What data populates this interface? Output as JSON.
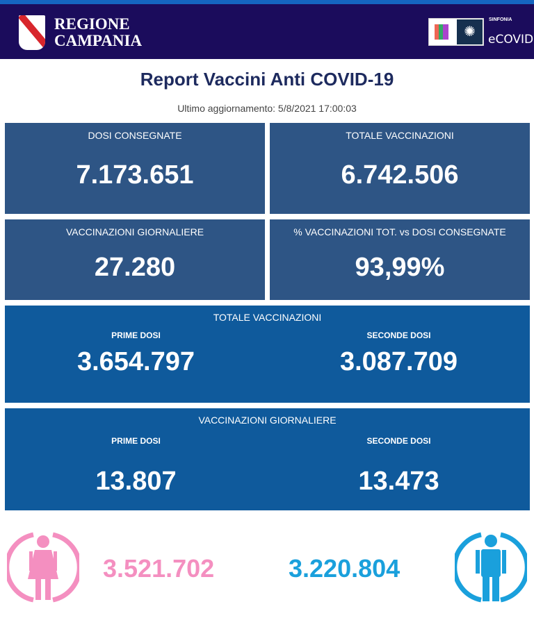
{
  "header": {
    "region_name_line1": "REGIONE",
    "region_name_line2": "CAMPANIA",
    "logo_small": "SINFONIA",
    "logo_text": "eCOVID"
  },
  "title": "Report Vaccini Anti COVID-19",
  "last_update": "Ultimo aggiornamento: 5/8/2021  17:00:03",
  "cards": [
    {
      "label": "DOSI  CONSEGNATE",
      "value": "7.173.651"
    },
    {
      "label": "TOTALE VACCINAZIONI",
      "value": "6.742.506"
    },
    {
      "label": "VACCINAZIONI GIORNALIERE",
      "value": "27.280"
    },
    {
      "label": "% VACCINAZIONI TOT. vs DOSI CONSEGNATE",
      "value": "93,99%"
    }
  ],
  "totale": {
    "title": "TOTALE VACCINAZIONI",
    "prime_label": "PRIME DOSI",
    "prime": "3.654.797",
    "seconde_label": "SECONDE DOSI",
    "seconde": "3.087.709"
  },
  "giornaliere": {
    "title": "VACCINAZIONI GIORNALIERE",
    "prime_label": "PRIME DOSI",
    "prime": "13.807",
    "seconde_label": "SECONDE DOSI",
    "seconde": "13.473"
  },
  "gender": {
    "female": "3.521.702",
    "male": "3.220.804",
    "female_color": "#f48fc0",
    "male_color": "#1aa0dc",
    "female_icon": "female-icon",
    "male_icon": "male-icon"
  }
}
